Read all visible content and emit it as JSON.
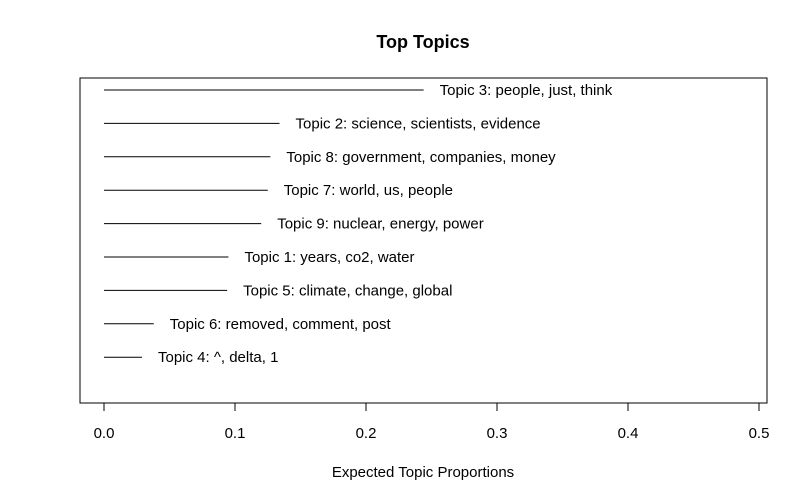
{
  "chart_data": {
    "type": "bar",
    "orientation": "horizontal",
    "title": "Top Topics",
    "xlabel": "Expected Topic Proportions",
    "ylabel": "",
    "xlim": [
      0,
      0.5
    ],
    "x_ticks": [
      "0.0",
      "0.1",
      "0.2",
      "0.3",
      "0.4",
      "0.5"
    ],
    "grid": false,
    "categories": [
      "Topic 3: people, just, think",
      "Topic 2: science, scientists, evidence",
      "Topic 8: government, companies, money",
      "Topic 7: world, us, people",
      "Topic 9: nuclear, energy, power",
      "Topic 1: years, co2, water",
      "Topic 5: climate, change, global",
      "Topic 6: removed, comment, post",
      "Topic 4: ^, delta, 1"
    ],
    "values": [
      0.244,
      0.134,
      0.127,
      0.125,
      0.12,
      0.095,
      0.094,
      0.038,
      0.029
    ]
  }
}
